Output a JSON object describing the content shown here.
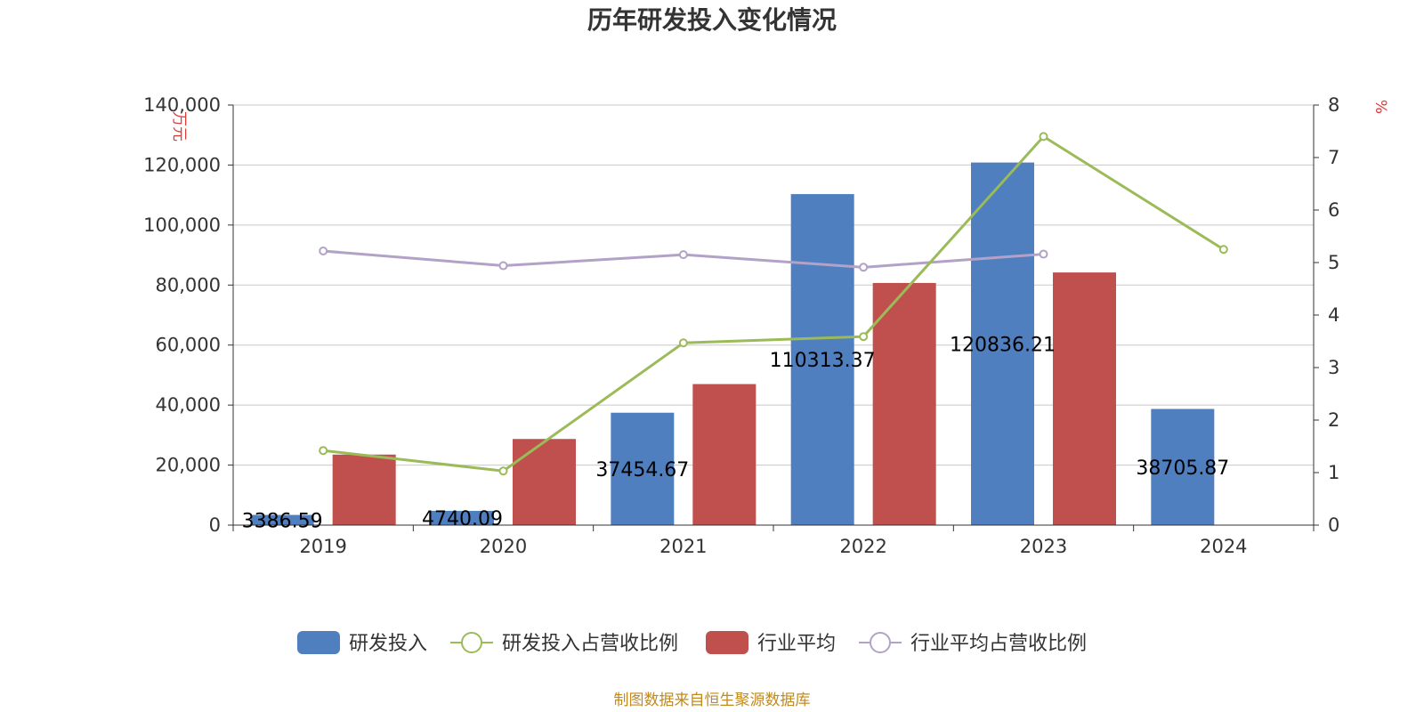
{
  "title": "历年研发投入变化情况",
  "source": "制图数据来自恒生聚源数据库",
  "colors": {
    "rd_bar": "#4f7fbf",
    "industry_bar": "#c0504d",
    "rd_ratio_line": "#9bbb59",
    "industry_ratio_line": "#b3a2c7"
  },
  "chart_data": {
    "type": "bar",
    "categories": [
      "2019",
      "2020",
      "2021",
      "2022",
      "2023",
      "2024"
    ],
    "y_left": {
      "label": "万元",
      "range": [
        0,
        140000
      ],
      "ticks": [
        0,
        20000,
        40000,
        60000,
        80000,
        100000,
        120000,
        140000
      ],
      "tick_labels": [
        "0",
        "20,000",
        "40,000",
        "60,000",
        "80,000",
        "100,000",
        "120,000",
        "140,000"
      ]
    },
    "y_right": {
      "label": "%",
      "range": [
        0,
        8
      ],
      "ticks": [
        0,
        1,
        2,
        3,
        4,
        5,
        6,
        7,
        8
      ],
      "tick_labels": [
        "0",
        "1",
        "2",
        "3",
        "4",
        "5",
        "6",
        "7",
        "8"
      ]
    },
    "grid": true,
    "legend_position": "bottom",
    "series": [
      {
        "name": "研发投入",
        "type": "bar",
        "axis": "left",
        "values": [
          3386.59,
          4740.09,
          37454.67,
          110313.37,
          120836.21,
          38705.87
        ],
        "labels": [
          "3386.59",
          "4740.09",
          "37454.67",
          "110313.37",
          "120836.21",
          "38705.87"
        ]
      },
      {
        "name": "研发投入占营收比例",
        "type": "line",
        "axis": "right",
        "values": [
          1.42,
          1.03,
          3.47,
          3.59,
          7.4,
          5.25
        ]
      },
      {
        "name": "行业平均",
        "type": "bar",
        "axis": "left",
        "values": [
          23500,
          28700,
          47000,
          80700,
          84200,
          null
        ]
      },
      {
        "name": "行业平均占营收比例",
        "type": "line",
        "axis": "right",
        "values": [
          5.22,
          4.94,
          5.15,
          4.91,
          5.16,
          null
        ]
      }
    ]
  }
}
